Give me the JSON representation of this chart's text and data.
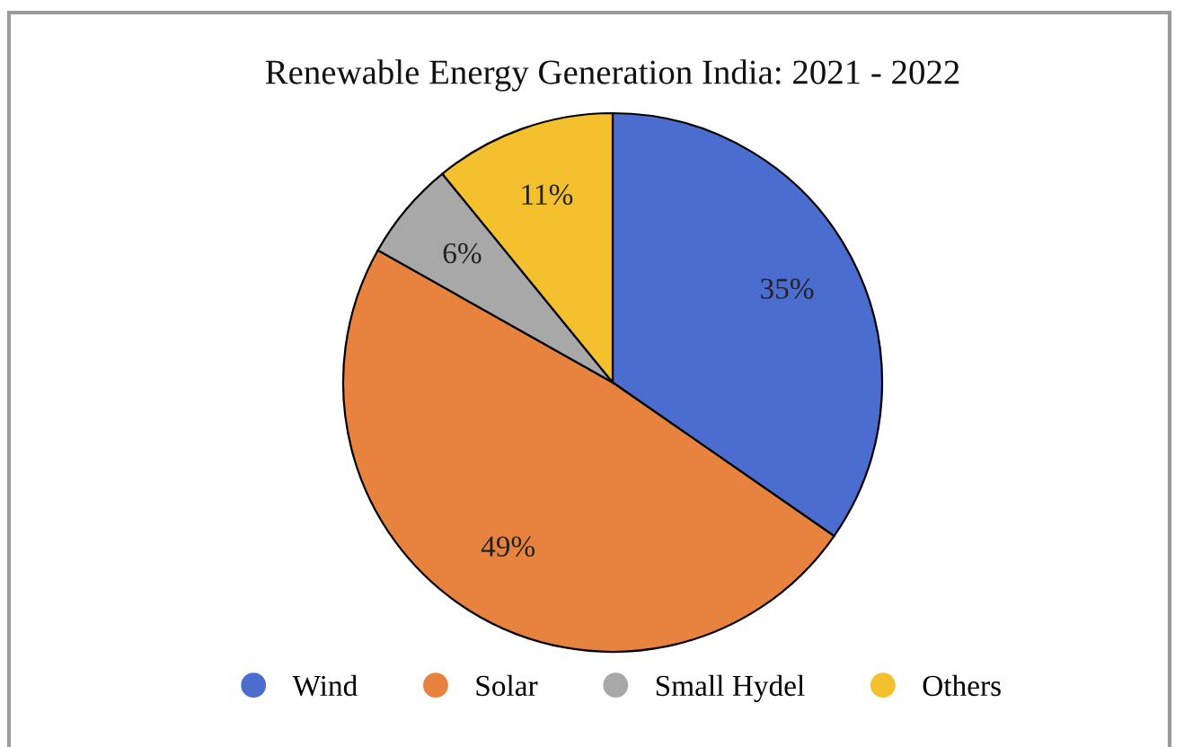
{
  "chart_data": {
    "type": "pie",
    "title": "Renewable Energy Generation India: 2021 - 2022",
    "categories": [
      "Wind",
      "Solar",
      "Small Hydel",
      "Others"
    ],
    "values": [
      35,
      49,
      6,
      11
    ],
    "colors": [
      "#4b6dcf",
      "#e8823f",
      "#a8a8a8",
      "#f4c02e"
    ],
    "value_labels": [
      "35%",
      "49%",
      "6%",
      "11%"
    ],
    "legend": "bottom"
  }
}
